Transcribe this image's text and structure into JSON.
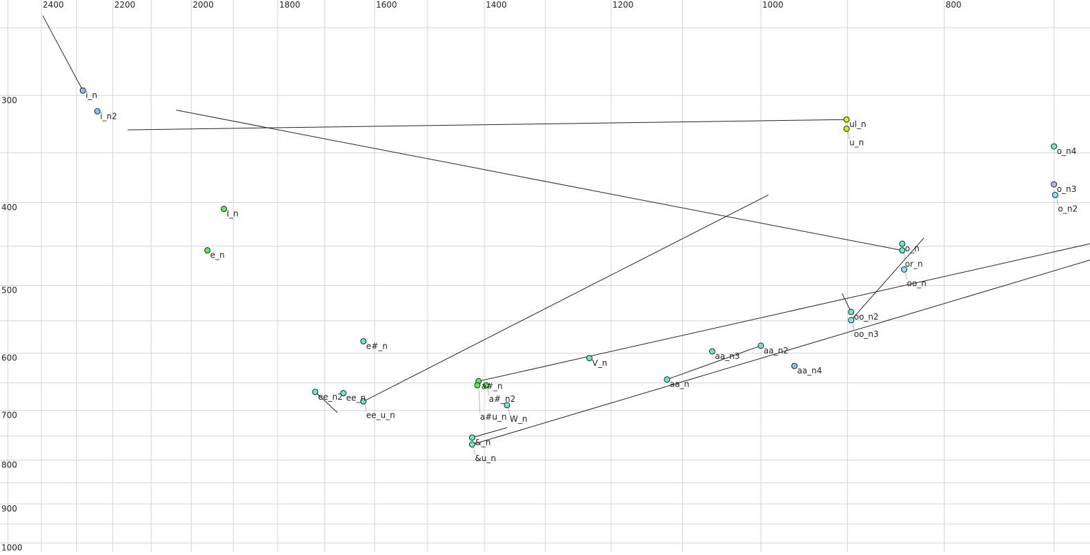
{
  "chart_data": {
    "type": "scatter",
    "title": "",
    "xlabel": "",
    "ylabel": "",
    "x_scale": "log",
    "y_scale": "log",
    "x_reversed": true,
    "y_reversed": false,
    "xlim": [
      2524,
      670
    ],
    "ylim": [
      232,
      1025
    ],
    "grid": true,
    "x_grid_step": 100,
    "y_grid_step": 50,
    "x_ticks": [
      2400,
      2200,
      2000,
      1800,
      1600,
      1400,
      1200,
      1000,
      800
    ],
    "y_ticks": [
      300,
      400,
      500,
      600,
      700,
      800,
      900,
      1000
    ],
    "colors": {
      "blue": "#8cbcf0",
      "lavender": "#b4b4f0",
      "cyan": "#78eef0",
      "aqua": "#66eebb",
      "green": "#55ee55",
      "yellowgreen": "#ccee11",
      "grid": "#d4d4d4",
      "line": "#222222"
    },
    "points": [
      {
        "label": "i_n",
        "x": 2282,
        "y": 296,
        "color": "blue"
      },
      {
        "label": "i_n2",
        "x": 2242,
        "y": 313,
        "color": "blue"
      },
      {
        "label": "ul_n",
        "x": 901,
        "y": 320,
        "color": "yellowgreen"
      },
      {
        "label": "u_n",
        "x": 901,
        "y": 328,
        "color": "yellowgreen"
      },
      {
        "label": "o_n4",
        "x": 700,
        "y": 344,
        "color": "aqua"
      },
      {
        "label": "o_n3",
        "x": 700,
        "y": 381,
        "color": "lavender"
      },
      {
        "label": "o_n2",
        "x": 699,
        "y": 392,
        "color": "cyan"
      },
      {
        "label": "I_n",
        "x": 1922,
        "y": 407,
        "color": "green"
      },
      {
        "label": "e_n",
        "x": 1961,
        "y": 455,
        "color": "green"
      },
      {
        "label": "o_n",
        "x": 842,
        "y": 447,
        "color": "aqua"
      },
      {
        "label": "or_n",
        "x": 842,
        "y": 455,
        "color": "aqua"
      },
      {
        "label": "oo_n",
        "x": 840,
        "y": 479,
        "color": "cyan"
      },
      {
        "label": "oo_n2",
        "x": 896,
        "y": 537,
        "color": "aqua"
      },
      {
        "label": "oo_n3",
        "x": 896,
        "y": 549,
        "color": "cyan"
      },
      {
        "label": "e#_n",
        "x": 1622,
        "y": 581,
        "color": "aqua"
      },
      {
        "label": "aa_n3",
        "x": 1061,
        "y": 597,
        "color": "aqua"
      },
      {
        "label": "aa_n2",
        "x": 1000,
        "y": 588,
        "color": "aqua"
      },
      {
        "label": "aa_n4",
        "x": 960,
        "y": 621,
        "color": "blue"
      },
      {
        "label": "V_n",
        "x": 1232,
        "y": 608,
        "color": "aqua"
      },
      {
        "label": "aa_n",
        "x": 1121,
        "y": 644,
        "color": "aqua"
      },
      {
        "label": "ee_n2",
        "x": 1720,
        "y": 666,
        "color": "aqua"
      },
      {
        "label": "ee_n",
        "x": 1662,
        "y": 668,
        "color": "aqua"
      },
      {
        "label": "ee_u_n",
        "x": 1622,
        "y": 683,
        "color": "aqua"
      },
      {
        "label": "a#_n",
        "x": 1410,
        "y": 647,
        "color": "green"
      },
      {
        "label": "a#_n2",
        "x": 1397,
        "y": 654,
        "color": "green"
      },
      {
        "label": "a#u_n",
        "x": 1412,
        "y": 654,
        "color": "green"
      },
      {
        "label": "W_n",
        "x": 1362,
        "y": 690,
        "color": "aqua"
      },
      {
        "label": "&_n",
        "x": 1421,
        "y": 753,
        "color": "aqua"
      },
      {
        "label": "&u_n",
        "x": 1421,
        "y": 767,
        "color": "aqua"
      }
    ],
    "trajectories": [
      [
        [
          2396,
          242
        ],
        [
          2282,
          296
        ]
      ],
      [
        [
          2161,
          329
        ],
        [
          901,
          320
        ]
      ],
      [
        [
          2037,
          312
        ],
        [
          842,
          455
        ]
      ],
      [
        [
          991,
          392
        ],
        [
          1622,
          683
        ]
      ],
      [
        [
          820,
          440
        ],
        [
          896,
          549
        ]
      ],
      [
        [
          906,
          511
        ],
        [
          896,
          537
        ]
      ],
      [
        [
          670,
          447
        ],
        [
          1410,
          647
        ]
      ],
      [
        [
          670,
          467
        ],
        [
          1421,
          767
        ]
      ],
      [
        [
          1121,
          644
        ],
        [
          1000,
          588
        ]
      ],
      [
        [
          1720,
          666
        ],
        [
          1674,
          704
        ]
      ],
      [
        [
          1421,
          753
        ],
        [
          1362,
          733
        ]
      ]
    ]
  }
}
